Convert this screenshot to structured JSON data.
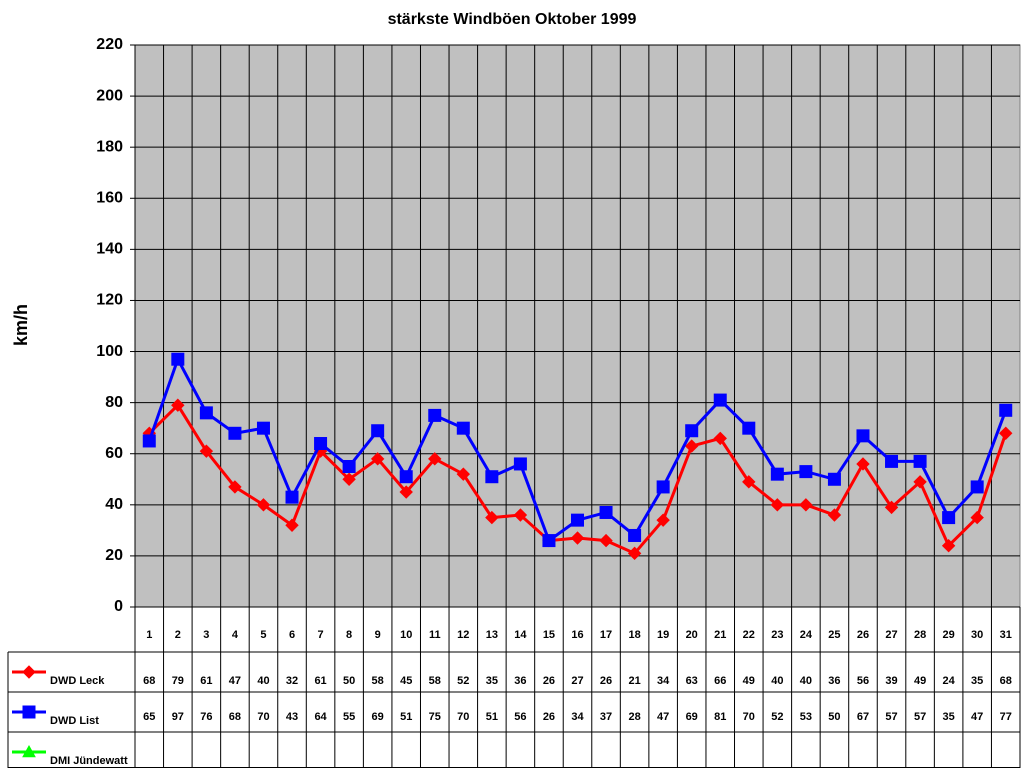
{
  "chart_data": {
    "type": "line",
    "title": "stärkste Windböen Oktober 1999",
    "y_label": "km/h",
    "categories": [
      "1",
      "2",
      "3",
      "4",
      "5",
      "6",
      "7",
      "8",
      "9",
      "10",
      "11",
      "12",
      "13",
      "14",
      "15",
      "16",
      "17",
      "18",
      "19",
      "20",
      "21",
      "22",
      "23",
      "24",
      "25",
      "26",
      "27",
      "28",
      "29",
      "30",
      "31"
    ],
    "series": [
      {
        "name": "DWD Leck",
        "color": "#ff0000",
        "marker": "diamond",
        "values": [
          68,
          79,
          61,
          47,
          40,
          32,
          61,
          50,
          58,
          45,
          58,
          52,
          35,
          36,
          26,
          27,
          26,
          21,
          34,
          63,
          66,
          49,
          40,
          40,
          36,
          56,
          39,
          49,
          24,
          35,
          68
        ]
      },
      {
        "name": "DWD List",
        "color": "#0000ff",
        "marker": "square",
        "values": [
          65,
          97,
          76,
          68,
          70,
          43,
          64,
          55,
          69,
          51,
          75,
          70,
          51,
          56,
          26,
          34,
          37,
          28,
          47,
          69,
          81,
          70,
          52,
          53,
          50,
          67,
          57,
          57,
          35,
          47,
          77
        ]
      },
      {
        "name": "DMI Jündewatt",
        "color": "#00ff00",
        "marker": "triangle",
        "values": [
          null,
          null,
          null,
          null,
          null,
          null,
          null,
          null,
          null,
          null,
          null,
          null,
          null,
          null,
          null,
          null,
          null,
          null,
          null,
          null,
          null,
          null,
          null,
          null,
          null,
          null,
          null,
          null,
          null,
          null,
          null
        ]
      }
    ],
    "ylim": [
      0,
      220
    ],
    "yticks": [
      0,
      20,
      40,
      60,
      80,
      100,
      120,
      140,
      160,
      180,
      200,
      220
    ],
    "grid": true,
    "data_table": true
  }
}
